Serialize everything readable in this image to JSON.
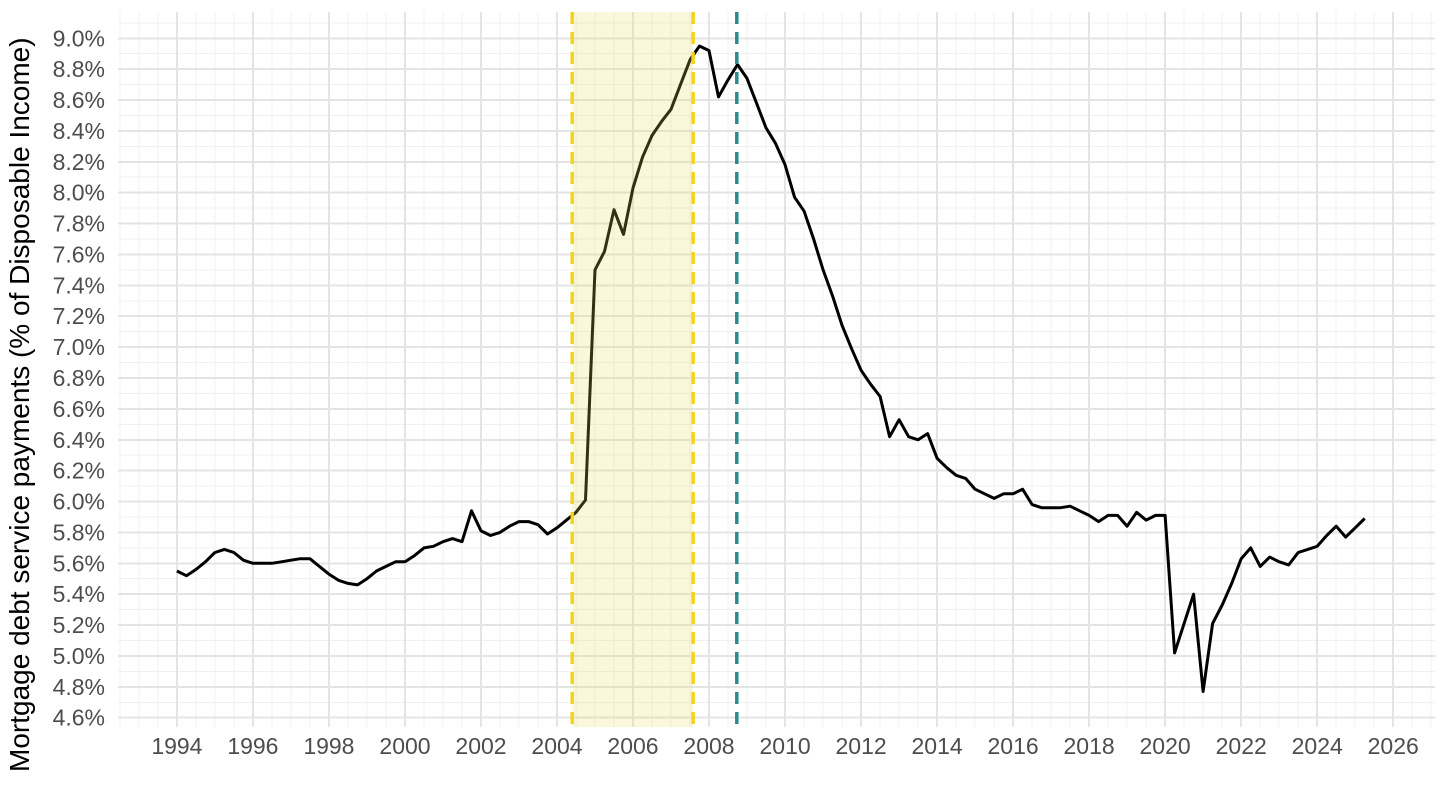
{
  "chart_data": {
    "type": "line",
    "title": "",
    "xlabel": "",
    "ylabel": "Mortgage debt service payments (% of Disposable Income)",
    "xlim": [
      1992.45,
      2027.1
    ],
    "ylim": [
      4.54,
      9.17
    ],
    "grid": {
      "major_color": "#e4e4e4",
      "minor_color": "#f0f0f0",
      "x_major_step_years": 2,
      "x_minor_step_years": 0.5,
      "y_major_step": 0.2,
      "y_minor_step": 0.1
    },
    "axis_text_color": "#4d4d4d",
    "x_ticks": [
      {
        "value": 1994,
        "label": "1994"
      },
      {
        "value": 1996,
        "label": "1996"
      },
      {
        "value": 1998,
        "label": "1998"
      },
      {
        "value": 2000,
        "label": "2000"
      },
      {
        "value": 2002,
        "label": "2002"
      },
      {
        "value": 2004,
        "label": "2004"
      },
      {
        "value": 2006,
        "label": "2006"
      },
      {
        "value": 2008,
        "label": "2008"
      },
      {
        "value": 2010,
        "label": "2010"
      },
      {
        "value": 2012,
        "label": "2012"
      },
      {
        "value": 2014,
        "label": "2014"
      },
      {
        "value": 2016,
        "label": "2016"
      },
      {
        "value": 2018,
        "label": "2018"
      },
      {
        "value": 2020,
        "label": "2020"
      },
      {
        "value": 2022,
        "label": "2022"
      },
      {
        "value": 2024,
        "label": "2024"
      },
      {
        "value": 2026,
        "label": "2026"
      }
    ],
    "y_ticks": [
      {
        "value": 4.6,
        "label": "4.6%"
      },
      {
        "value": 4.8,
        "label": "4.8%"
      },
      {
        "value": 5.0,
        "label": "5.0%"
      },
      {
        "value": 5.2,
        "label": "5.2%"
      },
      {
        "value": 5.4,
        "label": "5.4%"
      },
      {
        "value": 5.6,
        "label": "5.6%"
      },
      {
        "value": 5.8,
        "label": "5.8%"
      },
      {
        "value": 6.0,
        "label": "6.0%"
      },
      {
        "value": 6.2,
        "label": "6.2%"
      },
      {
        "value": 6.4,
        "label": "6.4%"
      },
      {
        "value": 6.6,
        "label": "6.6%"
      },
      {
        "value": 6.8,
        "label": "6.8%"
      },
      {
        "value": 7.0,
        "label": "7.0%"
      },
      {
        "value": 7.2,
        "label": "7.2%"
      },
      {
        "value": 7.4,
        "label": "7.4%"
      },
      {
        "value": 7.6,
        "label": "7.6%"
      },
      {
        "value": 7.8,
        "label": "7.8%"
      },
      {
        "value": 8.0,
        "label": "8.0%"
      },
      {
        "value": 8.2,
        "label": "8.2%"
      },
      {
        "value": 8.4,
        "label": "8.4%"
      },
      {
        "value": 8.6,
        "label": "8.6%"
      },
      {
        "value": 8.8,
        "label": "8.8%"
      },
      {
        "value": 9.0,
        "label": "9.0%"
      }
    ],
    "highlight_band": {
      "x_start": 2004.4,
      "x_end": 2007.58,
      "fill": "#eddb60",
      "fill_opacity": 0.22,
      "border_color": "#f2d41b",
      "border_style": "dashed",
      "drawn_over_line": true
    },
    "vline": {
      "x": 2008.73,
      "color": "#2b8a8c",
      "style": "dashed"
    },
    "series": [
      {
        "name": "mortgage-debt-service-ratio",
        "color": "#000000",
        "width": 3,
        "points": [
          [
            1994.0,
            5.55
          ],
          [
            1994.25,
            5.52
          ],
          [
            1994.5,
            5.56
          ],
          [
            1994.75,
            5.61
          ],
          [
            1995.0,
            5.67
          ],
          [
            1995.25,
            5.69
          ],
          [
            1995.5,
            5.67
          ],
          [
            1995.75,
            5.62
          ],
          [
            1996.0,
            5.6
          ],
          [
            1996.25,
            5.6
          ],
          [
            1996.5,
            5.6
          ],
          [
            1996.75,
            5.61
          ],
          [
            1997.0,
            5.62
          ],
          [
            1997.25,
            5.63
          ],
          [
            1997.5,
            5.63
          ],
          [
            1997.75,
            5.58
          ],
          [
            1998.0,
            5.53
          ],
          [
            1998.25,
            5.49
          ],
          [
            1998.5,
            5.47
          ],
          [
            1998.75,
            5.46
          ],
          [
            1999.0,
            5.5
          ],
          [
            1999.25,
            5.55
          ],
          [
            1999.5,
            5.58
          ],
          [
            1999.75,
            5.61
          ],
          [
            2000.0,
            5.61
          ],
          [
            2000.25,
            5.65
          ],
          [
            2000.5,
            5.7
          ],
          [
            2000.75,
            5.71
          ],
          [
            2001.0,
            5.74
          ],
          [
            2001.25,
            5.76
          ],
          [
            2001.5,
            5.74
          ],
          [
            2001.75,
            5.94
          ],
          [
            2002.0,
            5.81
          ],
          [
            2002.25,
            5.78
          ],
          [
            2002.5,
            5.8
          ],
          [
            2002.75,
            5.84
          ],
          [
            2003.0,
            5.87
          ],
          [
            2003.25,
            5.87
          ],
          [
            2003.5,
            5.85
          ],
          [
            2003.75,
            5.79
          ],
          [
            2004.0,
            5.83
          ],
          [
            2004.25,
            5.88
          ],
          [
            2004.5,
            5.93
          ],
          [
            2004.75,
            6.01
          ],
          [
            2005.0,
            7.5
          ],
          [
            2005.25,
            7.62
          ],
          [
            2005.5,
            7.89
          ],
          [
            2005.75,
            7.73
          ],
          [
            2006.0,
            8.03
          ],
          [
            2006.25,
            8.23
          ],
          [
            2006.5,
            8.37
          ],
          [
            2006.75,
            8.46
          ],
          [
            2007.0,
            8.54
          ],
          [
            2007.25,
            8.7
          ],
          [
            2007.5,
            8.86
          ],
          [
            2007.75,
            8.95
          ],
          [
            2008.0,
            8.92
          ],
          [
            2008.25,
            8.62
          ],
          [
            2008.5,
            8.73
          ],
          [
            2008.75,
            8.83
          ],
          [
            2009.0,
            8.74
          ],
          [
            2009.25,
            8.58
          ],
          [
            2009.5,
            8.42
          ],
          [
            2009.75,
            8.32
          ],
          [
            2010.0,
            8.18
          ],
          [
            2010.25,
            7.97
          ],
          [
            2010.5,
            7.88
          ],
          [
            2010.75,
            7.7
          ],
          [
            2011.0,
            7.5
          ],
          [
            2011.25,
            7.33
          ],
          [
            2011.5,
            7.14
          ],
          [
            2011.75,
            6.99
          ],
          [
            2012.0,
            6.85
          ],
          [
            2012.25,
            6.76
          ],
          [
            2012.5,
            6.68
          ],
          [
            2012.75,
            6.42
          ],
          [
            2013.0,
            6.53
          ],
          [
            2013.25,
            6.42
          ],
          [
            2013.5,
            6.4
          ],
          [
            2013.75,
            6.44
          ],
          [
            2014.0,
            6.28
          ],
          [
            2014.25,
            6.22
          ],
          [
            2014.5,
            6.17
          ],
          [
            2014.75,
            6.15
          ],
          [
            2015.0,
            6.08
          ],
          [
            2015.25,
            6.05
          ],
          [
            2015.5,
            6.02
          ],
          [
            2015.75,
            6.05
          ],
          [
            2016.0,
            6.05
          ],
          [
            2016.25,
            6.08
          ],
          [
            2016.5,
            5.98
          ],
          [
            2016.75,
            5.96
          ],
          [
            2017.0,
            5.96
          ],
          [
            2017.25,
            5.96
          ],
          [
            2017.5,
            5.97
          ],
          [
            2017.75,
            5.94
          ],
          [
            2018.0,
            5.91
          ],
          [
            2018.25,
            5.87
          ],
          [
            2018.5,
            5.91
          ],
          [
            2018.75,
            5.91
          ],
          [
            2019.0,
            5.84
          ],
          [
            2019.25,
            5.93
          ],
          [
            2019.5,
            5.88
          ],
          [
            2019.75,
            5.91
          ],
          [
            2020.0,
            5.91
          ],
          [
            2020.25,
            5.02
          ],
          [
            2020.5,
            5.21
          ],
          [
            2020.75,
            5.4
          ],
          [
            2021.0,
            4.77
          ],
          [
            2021.25,
            5.21
          ],
          [
            2021.5,
            5.33
          ],
          [
            2021.75,
            5.47
          ],
          [
            2022.0,
            5.63
          ],
          [
            2022.25,
            5.7
          ],
          [
            2022.5,
            5.58
          ],
          [
            2022.75,
            5.64
          ],
          [
            2023.0,
            5.61
          ],
          [
            2023.25,
            5.59
          ],
          [
            2023.5,
            5.67
          ],
          [
            2023.75,
            5.69
          ],
          [
            2024.0,
            5.71
          ],
          [
            2024.25,
            5.78
          ],
          [
            2024.5,
            5.84
          ],
          [
            2024.75,
            5.77
          ],
          [
            2025.0,
            5.83
          ],
          [
            2025.25,
            5.89
          ]
        ]
      }
    ]
  }
}
